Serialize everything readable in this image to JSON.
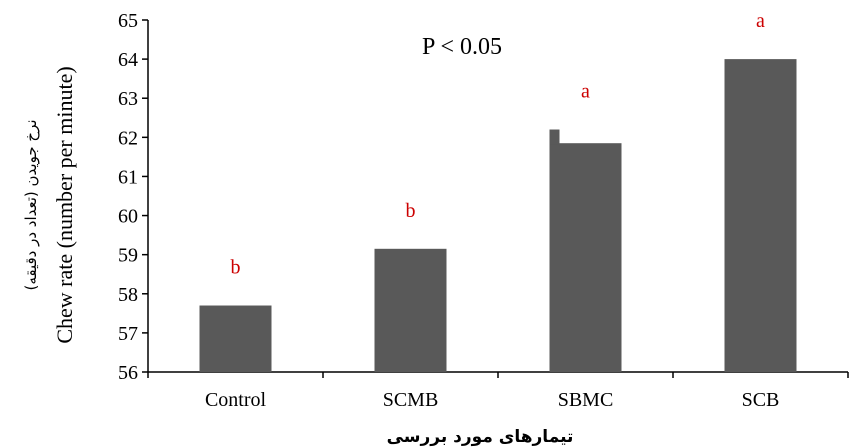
{
  "chart_data": {
    "type": "bar",
    "categories": [
      "Control",
      "SCMB",
      "SBMC",
      "SCB"
    ],
    "values": [
      57.7,
      59.15,
      61.85,
      64.0
    ],
    "sbmc_step_top": 62.2,
    "significance": [
      "b",
      "b",
      "a",
      "a"
    ],
    "ylabel": "Chew rate (number per minute)",
    "ylabel_fa": "نرخ جویدن (تعداد در دقیقه)",
    "xlabel_fa": "تیمارهای مورد بررسی",
    "annotation": "P < 0.05",
    "ylim": [
      56,
      65
    ],
    "yticks": [
      56,
      57,
      58,
      59,
      60,
      61,
      62,
      63,
      64,
      65
    ],
    "grid": false,
    "legend": "none",
    "colors": {
      "bar": "#595959",
      "significance": "#cc0000",
      "axis": "#000000"
    }
  }
}
